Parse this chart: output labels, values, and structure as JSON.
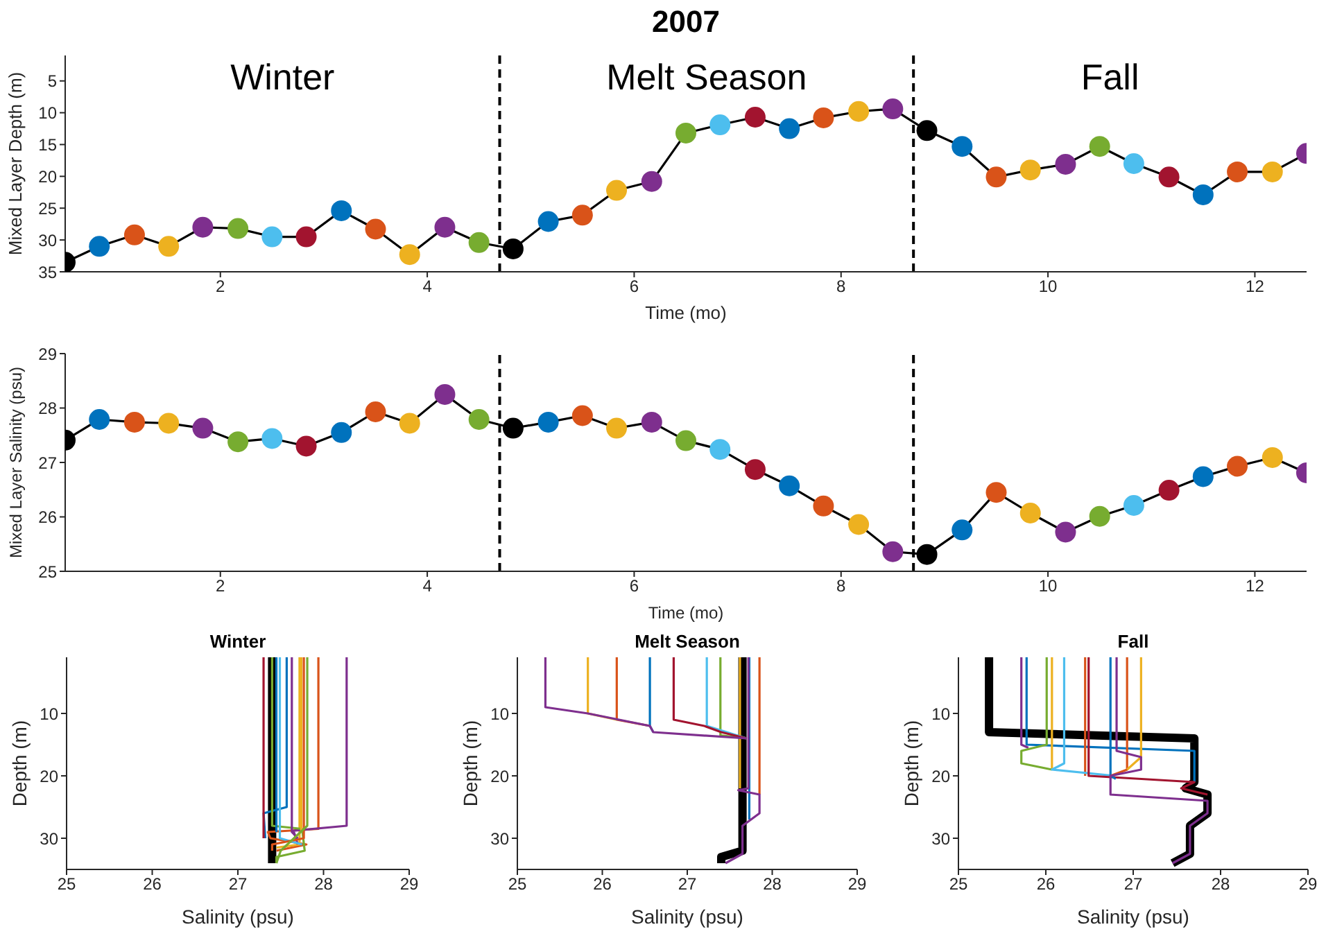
{
  "chart_data": [
    {
      "type": "line",
      "title": "2007",
      "xlabel": "Time (mo)",
      "ylabel": "Mixed Layer Depth (m)",
      "xlim": [
        0.5,
        12.5
      ],
      "xticks": [
        2,
        4,
        6,
        8,
        10,
        12
      ],
      "ylim": [
        35,
        1
      ],
      "yticks": [
        5,
        10,
        15,
        20,
        25,
        30,
        35
      ],
      "marker": "circle",
      "x": [
        0.5,
        0.83,
        1.17,
        1.5,
        1.83,
        2.17,
        2.5,
        2.83,
        3.17,
        3.5,
        3.83,
        4.17,
        4.5,
        4.83,
        5.17,
        5.5,
        5.83,
        6.17,
        6.5,
        6.83,
        7.17,
        7.5,
        7.83,
        8.17,
        8.5,
        8.83,
        9.17,
        9.5,
        9.83,
        10.17,
        10.5,
        10.83,
        11.17,
        11.5,
        11.83,
        12.17,
        12.5
      ],
      "series": [
        {
          "color": "#000000",
          "values": [
            33.5,
            31,
            29.2,
            31,
            28,
            28.2,
            29.5,
            29.5,
            25.4,
            28.3,
            32.3,
            28,
            30.4,
            31.4,
            27.1,
            26.1,
            22.2,
            20.8,
            13.2,
            11.9,
            10.7,
            12.5,
            10.8,
            9.8,
            9.4,
            12.8,
            15.3,
            20.1,
            19,
            18.1,
            15.3,
            18,
            20.1,
            22.9,
            19.3,
            19.3,
            16.4
          ],
          "colors": [
            "#000000",
            "#0072bd",
            "#d95319",
            "#edb120",
            "#7e2f8e",
            "#77ac30",
            "#4dbeee",
            "#a2142f",
            "#0072bd",
            "#d95319",
            "#edb120",
            "#7e2f8e",
            "#77ac30",
            "#000000",
            "#0072bd",
            "#d95319",
            "#edb120",
            "#7e2f8e",
            "#77ac30",
            "#4dbeee",
            "#a2142f",
            "#0072bd",
            "#d95319",
            "#edb120",
            "#7e2f8e",
            "#000000",
            "#0072bd",
            "#d95319",
            "#edb120",
            "#7e2f8e",
            "#77ac30",
            "#4dbeee",
            "#a2142f",
            "#0072bd",
            "#d95319",
            "#edb120",
            "#7e2f8e"
          ]
        }
      ],
      "ref_lines": [
        {
          "axis": "x",
          "value": 4.7,
          "color": "#000000",
          "line_style": "dashed"
        },
        {
          "axis": "x",
          "value": 8.7,
          "color": "#000000",
          "line_style": "dashed"
        }
      ],
      "annotations": [
        "Winter",
        "Melt Season",
        "Fall"
      ]
    },
    {
      "type": "line",
      "xlabel": "Time (mo)",
      "ylabel": "Mixed Layer Salinity (psu)",
      "xlim": [
        0.5,
        12.5
      ],
      "xticks": [
        2,
        4,
        6,
        8,
        10,
        12
      ],
      "ylim": [
        25,
        29
      ],
      "yticks": [
        25,
        26,
        27,
        28,
        29
      ],
      "marker": "circle",
      "x": [
        0.5,
        0.83,
        1.17,
        1.5,
        1.83,
        2.17,
        2.5,
        2.83,
        3.17,
        3.5,
        3.83,
        4.17,
        4.5,
        4.83,
        5.17,
        5.5,
        5.83,
        6.17,
        6.5,
        6.83,
        7.17,
        7.5,
        7.83,
        8.17,
        8.5,
        8.83,
        9.17,
        9.5,
        9.83,
        10.17,
        10.5,
        10.83,
        11.17,
        11.5,
        11.83,
        12.17,
        12.5
      ],
      "series": [
        {
          "color": "#000000",
          "values": [
            27.41,
            27.79,
            27.74,
            27.72,
            27.63,
            27.38,
            27.44,
            27.3,
            27.55,
            27.93,
            27.72,
            28.25,
            27.79,
            27.63,
            27.74,
            27.86,
            27.63,
            27.74,
            27.4,
            27.24,
            26.87,
            26.57,
            26.2,
            25.86,
            25.36,
            25.31,
            25.76,
            26.45,
            26.07,
            25.72,
            26.01,
            26.21,
            26.49,
            26.74,
            26.93,
            27.09,
            26.81
          ],
          "colors": [
            "#000000",
            "#0072bd",
            "#d95319",
            "#edb120",
            "#7e2f8e",
            "#77ac30",
            "#4dbeee",
            "#a2142f",
            "#0072bd",
            "#d95319",
            "#edb120",
            "#7e2f8e",
            "#77ac30",
            "#000000",
            "#0072bd",
            "#d95319",
            "#edb120",
            "#7e2f8e",
            "#77ac30",
            "#4dbeee",
            "#a2142f",
            "#0072bd",
            "#d95319",
            "#edb120",
            "#7e2f8e",
            "#000000",
            "#0072bd",
            "#d95319",
            "#edb120",
            "#7e2f8e",
            "#77ac30",
            "#4dbeee",
            "#a2142f",
            "#0072bd",
            "#d95319",
            "#edb120",
            "#7e2f8e"
          ]
        }
      ],
      "ref_lines": [
        {
          "axis": "x",
          "value": 4.7,
          "color": "#000000",
          "line_style": "dashed"
        },
        {
          "axis": "x",
          "value": 8.7,
          "color": "#000000",
          "line_style": "dashed"
        }
      ]
    },
    {
      "type": "line",
      "title": "Winter",
      "xlabel": "Salinity (psu)",
      "ylabel": "Depth (m)",
      "xlim": [
        25,
        29
      ],
      "xticks": [
        25,
        26,
        27,
        28,
        29
      ],
      "ylim": [
        35,
        1
      ],
      "yticks": [
        10,
        20,
        30
      ],
      "series": [
        {
          "color": "#000000",
          "x": [
            27.4,
            27.4
          ],
          "values": [
            1,
            34
          ]
        },
        {
          "color": "#0072bd",
          "x": [
            27.57,
            27.57,
            27.3,
            27.32
          ],
          "values": [
            1,
            25,
            26,
            30
          ]
        },
        {
          "color": "#d95319",
          "x": [
            27.94,
            27.94,
            27.35,
            27.38,
            27.8,
            27.45
          ],
          "values": [
            1,
            28.5,
            29,
            30,
            31,
            32
          ]
        },
        {
          "color": "#edb120",
          "x": [
            27.72,
            27.72,
            27.45
          ],
          "values": [
            1,
            31,
            31.5
          ]
        },
        {
          "color": "#7e2f8e",
          "x": [
            28.27,
            28.27,
            27.65,
            27.7
          ],
          "values": [
            1,
            28,
            28.8,
            31
          ]
        },
        {
          "color": "#77ac30",
          "x": [
            27.4,
            27.4,
            27.75,
            27.78,
            27.45,
            27.45
          ],
          "values": [
            1,
            28,
            28.5,
            32,
            33,
            34
          ]
        },
        {
          "color": "#4dbeee",
          "x": [
            27.49,
            27.49,
            27.75
          ],
          "values": [
            1,
            30,
            31
          ]
        },
        {
          "color": "#a2142f",
          "x": [
            27.3,
            27.3
          ],
          "values": [
            1,
            30
          ]
        },
        {
          "color": "#0072bd",
          "x": [
            27.45,
            27.45
          ],
          "values": [
            1,
            29
          ]
        },
        {
          "color": "#d95319",
          "x": [
            27.77,
            27.77,
            27.4,
            27.4
          ],
          "values": [
            1,
            30,
            31,
            32
          ]
        },
        {
          "color": "#edb120",
          "x": [
            27.74,
            27.74
          ],
          "values": [
            1,
            29
          ]
        },
        {
          "color": "#7e2f8e",
          "x": [
            27.63,
            27.63,
            27.7
          ],
          "values": [
            1,
            29,
            30
          ]
        },
        {
          "color": "#77ac30",
          "x": [
            27.81,
            27.81,
            27.5,
            27.45
          ],
          "values": [
            1,
            28,
            32,
            34
          ]
        }
      ]
    },
    {
      "type": "line",
      "title": "Melt Season",
      "xlabel": "Salinity (psu)",
      "ylabel": "Depth (m)",
      "xlim": [
        25,
        29
      ],
      "xticks": [
        25,
        26,
        27,
        28,
        29
      ],
      "ylim": [
        35,
        1
      ],
      "yticks": [
        10,
        20,
        30
      ],
      "series": [
        {
          "color": "#000000",
          "x": [
            27.65,
            27.65,
            27.4,
            27.4
          ],
          "values": [
            1,
            32,
            33,
            34
          ]
        },
        {
          "color": "#0072bd",
          "x": [
            27.73,
            27.73
          ],
          "values": [
            1,
            27
          ]
        },
        {
          "color": "#d95319",
          "x": [
            27.85,
            27.85
          ],
          "values": [
            1,
            23
          ]
        },
        {
          "color": "#edb120",
          "x": [
            27.62,
            27.62
          ],
          "values": [
            1,
            22
          ]
        },
        {
          "color": "#7e2f8e",
          "x": [
            27.72,
            27.72,
            27.6,
            27.85,
            27.85,
            27.65,
            27.65,
            27.45
          ],
          "values": [
            1,
            22,
            22.3,
            23,
            26,
            28,
            32.5,
            34
          ]
        },
        {
          "color": "#77ac30",
          "x": [
            27.39,
            27.39,
            27.7
          ],
          "values": [
            1,
            13.5,
            14
          ]
        },
        {
          "color": "#4dbeee",
          "x": [
            27.23,
            27.23,
            27.7
          ],
          "values": [
            1,
            12,
            14
          ]
        },
        {
          "color": "#a2142f",
          "x": [
            26.84,
            26.84,
            27.2,
            27.4,
            27.7
          ],
          "values": [
            1,
            11,
            12,
            13,
            14
          ]
        },
        {
          "color": "#0072bd",
          "x": [
            26.56,
            26.56,
            26.6
          ],
          "values": [
            1,
            12,
            13
          ]
        },
        {
          "color": "#d95319",
          "x": [
            26.17,
            26.17,
            26.56
          ],
          "values": [
            1,
            11,
            12
          ]
        },
        {
          "color": "#edb120",
          "x": [
            25.83,
            25.83,
            26.17
          ],
          "values": [
            1,
            10,
            11
          ]
        },
        {
          "color": "#7e2f8e",
          "x": [
            25.33,
            25.33,
            25.83,
            26.56,
            26.6,
            27.7
          ],
          "values": [
            1,
            9,
            10,
            12,
            13,
            14
          ]
        }
      ]
    },
    {
      "type": "line",
      "title": "Fall",
      "xlabel": "Salinity (psu)",
      "ylabel": "Depth (m)",
      "xlim": [
        25,
        29
      ],
      "xticks": [
        25,
        26,
        27,
        28,
        29
      ],
      "ylim": [
        35,
        1
      ],
      "yticks": [
        10,
        20,
        30
      ],
      "series": [
        {
          "color": "#000000",
          "x": [
            25.35,
            25.35,
            27.7,
            27.7,
            27.6,
            27.85,
            27.85,
            27.65,
            27.65,
            27.45
          ],
          "values": [
            1,
            13,
            14,
            21,
            22,
            23,
            26,
            28,
            32.5,
            34
          ]
        },
        {
          "color": "#0072bd",
          "x": [
            25.78,
            25.78,
            27.7,
            27.7
          ],
          "values": [
            1,
            15,
            16,
            21
          ]
        },
        {
          "color": "#d95319",
          "x": [
            26.45,
            26.45
          ],
          "values": [
            1,
            20
          ]
        },
        {
          "color": "#edb120",
          "x": [
            26.07,
            26.07
          ],
          "values": [
            1,
            19
          ]
        },
        {
          "color": "#7e2f8e",
          "x": [
            25.72,
            25.72,
            25.8
          ],
          "values": [
            1,
            15,
            15.5
          ]
        },
        {
          "color": "#77ac30",
          "x": [
            26.01,
            26.01,
            25.72,
            25.72,
            26.07
          ],
          "values": [
            1,
            15,
            16,
            18,
            19
          ]
        },
        {
          "color": "#4dbeee",
          "x": [
            26.21,
            26.21,
            26.07,
            26.79
          ],
          "values": [
            1,
            18,
            19,
            20
          ]
        },
        {
          "color": "#a2142f",
          "x": [
            26.49,
            26.49,
            27.7,
            27.55,
            27.85
          ],
          "values": [
            1,
            20,
            21,
            22,
            23
          ]
        },
        {
          "color": "#0072bd",
          "x": [
            26.74,
            26.74,
            26.8
          ],
          "values": [
            1,
            20,
            20.5
          ]
        },
        {
          "color": "#d95319",
          "x": [
            26.93,
            26.93,
            26.74
          ],
          "values": [
            1,
            19,
            20
          ]
        },
        {
          "color": "#edb120",
          "x": [
            27.09,
            27.09,
            26.93
          ],
          "values": [
            1,
            17,
            19
          ]
        },
        {
          "color": "#7e2f8e",
          "x": [
            26.81,
            26.81,
            27.09,
            27.09,
            26.74,
            26.74,
            27.85,
            27.85,
            27.65,
            27.65,
            27.45
          ],
          "values": [
            1,
            16,
            17,
            19,
            20,
            23,
            24,
            26,
            28,
            32.5,
            34
          ]
        }
      ]
    }
  ]
}
